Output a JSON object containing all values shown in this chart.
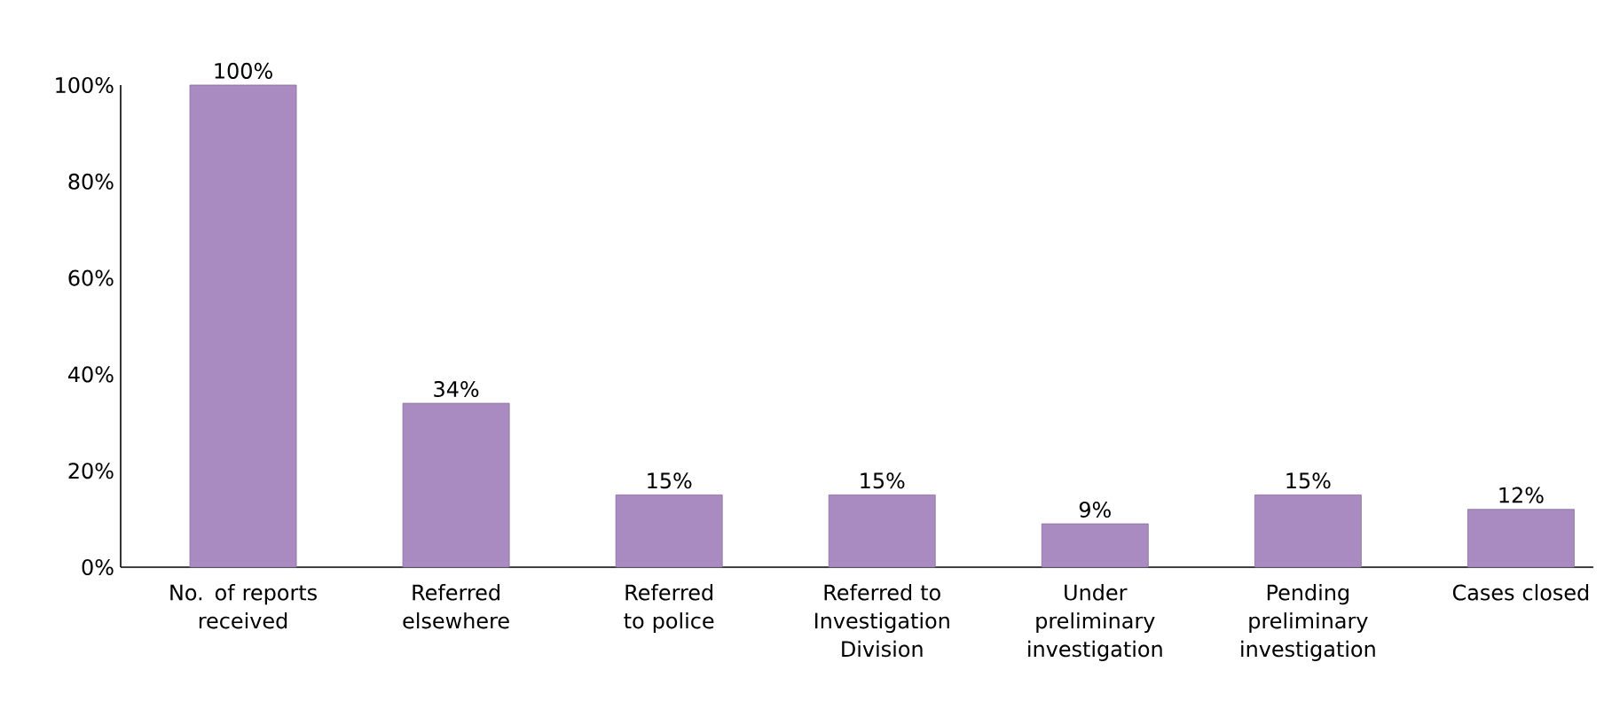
{
  "chart_data": {
    "type": "bar",
    "categories": [
      "No. of reports received",
      "Referred elsewhere",
      "Referred to police",
      "Referred to Investigation Division",
      "Under preliminary investigation",
      "Pending preliminary investigation",
      "Cases closed"
    ],
    "values": [
      100,
      34,
      15,
      15,
      9,
      15,
      12
    ],
    "value_labels": [
      "100%",
      "34%",
      "15%",
      "15%",
      "9%",
      "15%",
      "12%"
    ],
    "color": "#a98bc2",
    "ylim": [
      0,
      100
    ],
    "yticks": [
      {
        "value": 0,
        "label": "0%"
      },
      {
        "value": 20,
        "label": "20%"
      },
      {
        "value": 40,
        "label": "40%"
      },
      {
        "value": 60,
        "label": "60%"
      },
      {
        "value": 80,
        "label": "80%"
      },
      {
        "value": 100,
        "label": "100%"
      }
    ],
    "grid": false
  }
}
